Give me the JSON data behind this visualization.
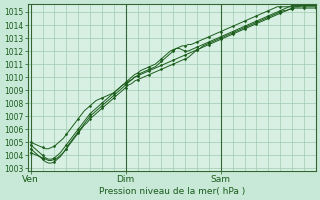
{
  "xlabel": "Pression niveau de la mer( hPa )",
  "background_color": "#c8e8d8",
  "plot_bg_color": "#d8f0e4",
  "grid_color": "#a0ccb0",
  "line_color": "#1a5c1a",
  "ylim": [
    1002.8,
    1015.6
  ],
  "yticks": [
    1003,
    1004,
    1005,
    1006,
    1007,
    1008,
    1009,
    1010,
    1011,
    1012,
    1013,
    1014,
    1015
  ],
  "xlim": [
    -1,
    96
  ],
  "xtick_positions": [
    0,
    32,
    64
  ],
  "xtick_labels": [
    "Ven",
    "Dim",
    "Sam"
  ],
  "vline_positions": [
    0,
    32,
    64
  ],
  "num_points": 97,
  "series": [
    [
      1005.0,
      1004.9,
      1004.8,
      1004.7,
      1004.6,
      1004.5,
      1004.5,
      1004.6,
      1004.7,
      1004.9,
      1005.1,
      1005.3,
      1005.6,
      1005.9,
      1006.2,
      1006.5,
      1006.8,
      1007.1,
      1007.4,
      1007.6,
      1007.8,
      1008.0,
      1008.2,
      1008.3,
      1008.4,
      1008.5,
      1008.6,
      1008.7,
      1008.8,
      1009.0,
      1009.2,
      1009.4,
      1009.5,
      1009.7,
      1009.8,
      1010.0,
      1010.1,
      1010.2,
      1010.3,
      1010.4,
      1010.5,
      1010.6,
      1010.7,
      1010.8,
      1010.9,
      1011.0,
      1011.1,
      1011.2,
      1011.3,
      1011.4,
      1011.5,
      1011.6,
      1011.7,
      1011.8,
      1011.9,
      1012.0,
      1012.1,
      1012.2,
      1012.3,
      1012.4,
      1012.5,
      1012.6,
      1012.7,
      1012.8,
      1012.9,
      1013.0,
      1013.1,
      1013.2,
      1013.3,
      1013.4,
      1013.5,
      1013.6,
      1013.7,
      1013.8,
      1013.9,
      1014.0,
      1014.1,
      1014.2,
      1014.3,
      1014.4,
      1014.5,
      1014.6,
      1014.7,
      1014.8,
      1014.9,
      1015.0,
      1015.1,
      1015.2,
      1015.3,
      1015.4,
      1015.4,
      1015.5,
      1015.5,
      1015.5,
      1015.5,
      1015.5,
      1015.5
    ],
    [
      1004.2,
      1004.1,
      1004.0,
      1003.9,
      1003.8,
      1003.7,
      1003.6,
      1003.6,
      1003.7,
      1003.8,
      1004.0,
      1004.2,
      1004.5,
      1004.8,
      1005.1,
      1005.4,
      1005.7,
      1006.0,
      1006.3,
      1006.5,
      1006.8,
      1007.0,
      1007.2,
      1007.4,
      1007.6,
      1007.8,
      1008.0,
      1008.2,
      1008.4,
      1008.6,
      1008.8,
      1009.0,
      1009.2,
      1009.4,
      1009.5,
      1009.7,
      1009.8,
      1009.9,
      1010.0,
      1010.1,
      1010.2,
      1010.3,
      1010.4,
      1010.5,
      1010.6,
      1010.7,
      1010.8,
      1010.9,
      1011.0,
      1011.1,
      1011.2,
      1011.3,
      1011.4,
      1011.5,
      1011.7,
      1011.9,
      1012.1,
      1012.2,
      1012.4,
      1012.5,
      1012.6,
      1012.7,
      1012.8,
      1012.9,
      1013.0,
      1013.1,
      1013.2,
      1013.3,
      1013.4,
      1013.5,
      1013.6,
      1013.7,
      1013.8,
      1013.9,
      1014.0,
      1014.1,
      1014.2,
      1014.3,
      1014.4,
      1014.5,
      1014.6,
      1014.7,
      1014.8,
      1014.9,
      1015.0,
      1015.1,
      1015.1,
      1015.2,
      1015.2,
      1015.3,
      1015.3,
      1015.3,
      1015.3,
      1015.3,
      1015.3,
      1015.3,
      1015.3
    ],
    [
      1004.8,
      1004.6,
      1004.4,
      1004.2,
      1004.0,
      1003.8,
      1003.7,
      1003.7,
      1003.8,
      1004.0,
      1004.2,
      1004.5,
      1004.8,
      1005.1,
      1005.4,
      1005.7,
      1006.0,
      1006.3,
      1006.6,
      1006.9,
      1007.2,
      1007.4,
      1007.6,
      1007.8,
      1008.0,
      1008.2,
      1008.4,
      1008.6,
      1008.8,
      1009.0,
      1009.2,
      1009.4,
      1009.6,
      1009.8,
      1010.0,
      1010.2,
      1010.3,
      1010.5,
      1010.6,
      1010.7,
      1010.8,
      1010.9,
      1011.0,
      1011.2,
      1011.4,
      1011.6,
      1011.8,
      1012.0,
      1012.1,
      1012.2,
      1012.2,
      1012.1,
      1012.0,
      1012.0,
      1012.1,
      1012.2,
      1012.3,
      1012.4,
      1012.5,
      1012.6,
      1012.7,
      1012.8,
      1012.9,
      1013.0,
      1013.1,
      1013.2,
      1013.3,
      1013.4,
      1013.5,
      1013.6,
      1013.7,
      1013.8,
      1013.9,
      1014.0,
      1014.1,
      1014.2,
      1014.3,
      1014.4,
      1014.5,
      1014.6,
      1014.7,
      1014.8,
      1014.9,
      1015.0,
      1015.1,
      1015.2,
      1015.3,
      1015.4,
      1015.5,
      1015.5,
      1015.5,
      1015.5,
      1015.5,
      1015.5,
      1015.5,
      1015.5,
      1015.5
    ],
    [
      1004.5,
      1004.3,
      1004.1,
      1003.9,
      1003.7,
      1003.5,
      1003.4,
      1003.4,
      1003.5,
      1003.7,
      1003.9,
      1004.2,
      1004.5,
      1004.9,
      1005.2,
      1005.5,
      1005.8,
      1006.1,
      1006.4,
      1006.7,
      1007.0,
      1007.2,
      1007.4,
      1007.6,
      1007.8,
      1008.0,
      1008.2,
      1008.4,
      1008.6,
      1008.8,
      1009.0,
      1009.2,
      1009.4,
      1009.6,
      1009.8,
      1010.0,
      1010.1,
      1010.3,
      1010.4,
      1010.5,
      1010.6,
      1010.7,
      1010.8,
      1011.0,
      1011.2,
      1011.4,
      1011.6,
      1011.8,
      1012.0,
      1012.2,
      1012.3,
      1012.4,
      1012.4,
      1012.5,
      1012.5,
      1012.6,
      1012.7,
      1012.8,
      1012.9,
      1013.0,
      1013.1,
      1013.2,
      1013.3,
      1013.4,
      1013.5,
      1013.6,
      1013.7,
      1013.8,
      1013.9,
      1014.0,
      1014.1,
      1014.2,
      1014.3,
      1014.4,
      1014.5,
      1014.6,
      1014.7,
      1014.8,
      1014.9,
      1015.0,
      1015.1,
      1015.2,
      1015.3,
      1015.4,
      1015.4,
      1015.4,
      1015.4,
      1015.4,
      1015.4,
      1015.4,
      1015.4,
      1015.4,
      1015.4,
      1015.4,
      1015.4,
      1015.4,
      1015.4
    ]
  ]
}
